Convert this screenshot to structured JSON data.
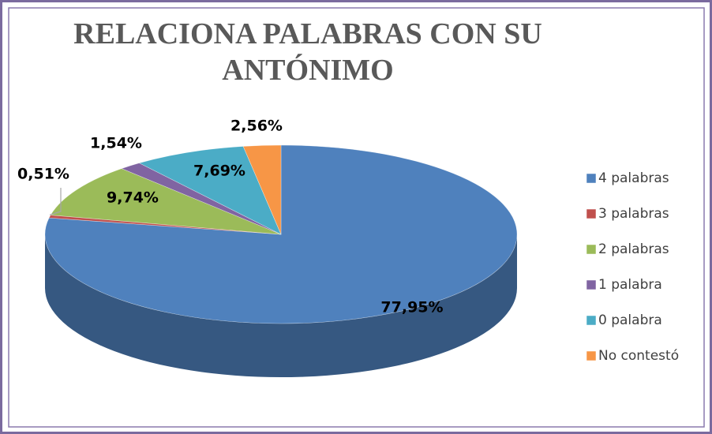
{
  "chart_data": {
    "type": "pie3d",
    "title": "RELACIONA  PALABRAS CON SU ANTÓNIMO",
    "categories": [
      "4 palabras",
      "3 palabras",
      "2 palabras",
      "1 palabra",
      "0 palabra",
      "No contestó"
    ],
    "values": [
      77.95,
      0.51,
      9.74,
      1.54,
      7.69,
      2.56
    ],
    "value_labels": [
      "77,95%",
      "0,51%",
      "9,74%",
      "1,54%",
      "7,69%",
      "2,56%"
    ],
    "colors": [
      "#4f81bd",
      "#c0504d",
      "#9bbb59",
      "#8064a2",
      "#4bacc6",
      "#f79646"
    ],
    "legend": "right"
  }
}
